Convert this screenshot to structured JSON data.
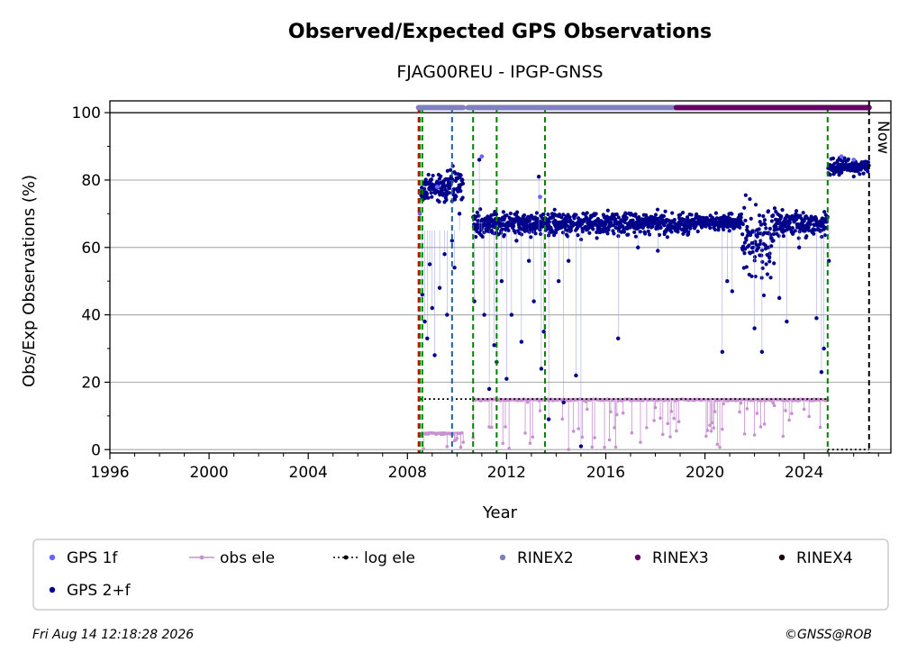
{
  "chart_data": {
    "type": "scatter",
    "title": "Observed/Expected GPS Observations",
    "subtitle": "FJAG00REU - IPGP-GNSS",
    "xlabel": "Year",
    "ylabel": "Obs/Exp Observations (%)",
    "xlim": [
      1996,
      2027.5
    ],
    "ylim": [
      -1,
      103.5
    ],
    "xticks": [
      1996,
      2000,
      2004,
      2008,
      2012,
      2016,
      2020,
      2024
    ],
    "yticks": [
      0,
      20,
      40,
      60,
      80,
      100
    ],
    "grid": "horizontal",
    "now_label": "Now",
    "now_x": 2026.62,
    "colors": {
      "gps1f": "#6666ff",
      "gps2f": "#00008b",
      "obs_ele": "#c890d0",
      "log_ele": "#000000",
      "rinex2": "#8080c0",
      "rinex3": "#660066",
      "rinex4": "#1a0010",
      "event_green": "#008000",
      "event_blue": "#1f5fa8",
      "event_red": "#cc0000"
    },
    "series": [
      {
        "name": "GPS 2+f",
        "segments": [
          {
            "start": 2008.55,
            "end": 2010.25,
            "median": 78,
            "spread": 4
          },
          {
            "start": 2010.65,
            "end": 2019.5,
            "median": 67,
            "spread": 3
          },
          {
            "start": 2019.5,
            "end": 2021.5,
            "median": 67.5,
            "spread": 2
          },
          {
            "start": 2021.5,
            "end": 2022.8,
            "median": 62,
            "spread": 10
          },
          {
            "start": 2022.8,
            "end": 2024.95,
            "median": 67,
            "spread": 3
          },
          {
            "start": 2024.97,
            "end": 2026.62,
            "median": 84,
            "spread": 2
          }
        ],
        "outliers": [
          [
            2008.6,
            46
          ],
          [
            2008.7,
            38
          ],
          [
            2008.8,
            33
          ],
          [
            2008.9,
            55
          ],
          [
            2009.0,
            42
          ],
          [
            2009.1,
            28
          ],
          [
            2009.3,
            48
          ],
          [
            2009.5,
            58
          ],
          [
            2009.6,
            40
          ],
          [
            2009.8,
            62
          ],
          [
            2009.9,
            54
          ],
          [
            2010.1,
            70
          ],
          [
            2010.7,
            44
          ],
          [
            2010.9,
            86
          ],
          [
            2011.0,
            68
          ],
          [
            2011.1,
            40
          ],
          [
            2011.3,
            18
          ],
          [
            2011.5,
            31
          ],
          [
            2011.6,
            26
          ],
          [
            2011.8,
            50
          ],
          [
            2012.0,
            21
          ],
          [
            2012.2,
            40
          ],
          [
            2012.4,
            62
          ],
          [
            2012.6,
            32
          ],
          [
            2012.9,
            56
          ],
          [
            2013.1,
            44
          ],
          [
            2013.3,
            81
          ],
          [
            2013.4,
            24
          ],
          [
            2013.5,
            35
          ],
          [
            2013.7,
            9
          ],
          [
            2014.1,
            50
          ],
          [
            2014.3,
            14
          ],
          [
            2014.5,
            56
          ],
          [
            2014.8,
            22
          ],
          [
            2015.0,
            1
          ],
          [
            2016.5,
            33
          ],
          [
            2017.3,
            60
          ],
          [
            2018.1,
            59
          ],
          [
            2020.7,
            29
          ],
          [
            2020.9,
            50
          ],
          [
            2021.1,
            47
          ],
          [
            2022.0,
            36
          ],
          [
            2022.3,
            29
          ],
          [
            2022.6,
            57
          ],
          [
            2023.0,
            45
          ],
          [
            2023.3,
            38
          ],
          [
            2023.8,
            60
          ],
          [
            2024.5,
            39
          ],
          [
            2024.7,
            23
          ],
          [
            2024.8,
            30
          ],
          [
            2025.0,
            56
          ]
        ]
      },
      {
        "name": "GPS 1f",
        "points": [
          [
            2008.5,
            70
          ],
          [
            2009.2,
            78
          ],
          [
            2011.0,
            87
          ],
          [
            2013.35,
            75
          ],
          [
            2025.5,
            87
          ],
          [
            2026.0,
            86
          ]
        ]
      },
      {
        "name": "obs ele",
        "segments": [
          {
            "start": 2008.55,
            "end": 2010.25,
            "value": 5
          },
          {
            "start": 2010.65,
            "end": 2024.95,
            "value": 15
          }
        ]
      },
      {
        "name": "log ele",
        "segments": [
          {
            "start": 2008.5,
            "end": 2010.65,
            "value": 15
          },
          {
            "start": 2010.65,
            "end": 2024.95,
            "value": 15
          },
          {
            "start": 2024.95,
            "end": 2026.62,
            "value": 0
          }
        ]
      }
    ],
    "rinex_bars": [
      {
        "name": "RINEX2",
        "start": 2008.45,
        "end": 2010.25
      },
      {
        "name": "RINEX2",
        "start": 2010.45,
        "end": 2018.85
      },
      {
        "name": "RINEX3",
        "start": 2018.85,
        "end": 2026.62
      }
    ],
    "event_lines": [
      {
        "x": 2008.45,
        "color": "event_red"
      },
      {
        "x": 2008.5,
        "color": "event_green"
      },
      {
        "x": 2008.6,
        "color": "event_green"
      },
      {
        "x": 2009.8,
        "color": "event_blue"
      },
      {
        "x": 2010.65,
        "color": "event_green"
      },
      {
        "x": 2011.6,
        "color": "event_green"
      },
      {
        "x": 2013.55,
        "color": "event_green"
      },
      {
        "x": 2024.95,
        "color": "event_green"
      }
    ],
    "legend": {
      "placement": "bottom",
      "entries": [
        "GPS 1f",
        "obs ele",
        "log ele",
        "RINEX2",
        "RINEX3",
        "RINEX4",
        "GPS 2+f"
      ]
    }
  },
  "footer": {
    "timestamp": "Fri Aug 14 12:18:28 2026",
    "credit": "©GNSS@ROB"
  }
}
